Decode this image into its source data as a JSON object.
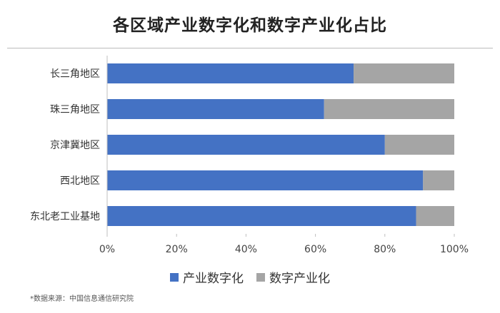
{
  "title": "各区域产业数字化和数字产业化占比",
  "source": "*数据来源：中国信息通信研究院",
  "colors": {
    "series1": "#4472c4",
    "series2": "#a5a5a5",
    "axis": "#bfbfbf"
  },
  "chart_data": {
    "type": "bar",
    "orientation": "horizontal",
    "stacked": true,
    "title": "各区域产业数字化和数字产业化占比",
    "categories": [
      "长三角地区",
      "珠三角地区",
      "京津冀地区",
      "西北地区",
      "东北老工业基地"
    ],
    "series": [
      {
        "name": "产业数字化",
        "values": [
          71,
          62.5,
          80,
          91,
          89
        ]
      },
      {
        "name": "数字产业化",
        "values": [
          29,
          37.5,
          20,
          9,
          11
        ]
      }
    ],
    "xlim": [
      0,
      100
    ],
    "xticks": [
      "0%",
      "20%",
      "40%",
      "60%",
      "80%",
      "100%"
    ],
    "grid": false,
    "legend": "bottom"
  }
}
